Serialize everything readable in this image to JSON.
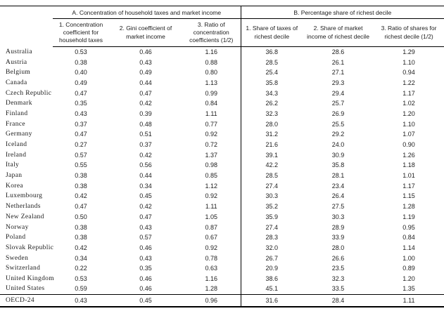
{
  "page": {
    "background": "#ffffff",
    "text_color": "#1c1c1c",
    "border_color": "#000000",
    "flag_color": "#107c10"
  },
  "table": {
    "panel_a_title": "A. Concentration of household taxes and market income",
    "panel_b_title": "B. Percentage share of richest decile",
    "column_headers": {
      "a1": "1. Concentration coefficient for household taxes",
      "a2": "2. Gini coefficient of market income",
      "a3": "3. Ratio of concentration coefficients (1/2)",
      "b1": "1. Share of taxes of richest decile",
      "b2": "2. Share of market income of richest decile",
      "b3": "3. Ratio of shares for richest decile (1/2)"
    },
    "rows": [
      {
        "country": "Australia",
        "values": [
          "0.53",
          "0.46",
          "1.16",
          "36.8",
          "28.6",
          "1.29"
        ]
      },
      {
        "country": "Austria",
        "values": [
          "0.38",
          "0.43",
          "0.88",
          "28.5",
          "26.1",
          "1.10"
        ]
      },
      {
        "country": "Belgium",
        "values": [
          "0.40",
          "0.49",
          "0.80",
          "25.4",
          "27.1",
          "0.94"
        ]
      },
      {
        "country": "Canada",
        "values": [
          "0.49",
          "0.44",
          "1.13",
          "35.8",
          "29.3",
          "1.22"
        ]
      },
      {
        "country": "Czech Republic",
        "values": [
          "0.47",
          "0.47",
          "0.99",
          "34.3",
          "29.4",
          "1.17"
        ]
      },
      {
        "country": "Denmark",
        "values": [
          "0.35",
          "0.42",
          "0.84",
          "26.2",
          "25.7",
          "1.02"
        ]
      },
      {
        "country": "Finland",
        "values": [
          "0.43",
          "0.39",
          "1.11",
          "32.3",
          "26.9",
          "1.20"
        ]
      },
      {
        "country": "France",
        "values": [
          "0.37",
          "0.48",
          "0.77",
          "28.0",
          "25.5",
          "1.10"
        ]
      },
      {
        "country": "Germany",
        "values": [
          "0.47",
          "0.51",
          "0.92",
          "31.2",
          "29.2",
          "1.07"
        ]
      },
      {
        "country": "Iceland",
        "values": [
          "0.27",
          "0.37",
          "0.72",
          "21.6",
          "24.0",
          "0.90"
        ]
      },
      {
        "country": "Ireland",
        "values": [
          "0.57",
          "0.42",
          "1.37",
          "39.1",
          "30.9",
          "1.26"
        ]
      },
      {
        "country": "Italy",
        "values": [
          "0.55",
          "0.56",
          "0.98",
          "42.2",
          "35.8",
          "1.18"
        ]
      },
      {
        "country": "Japan",
        "values": [
          "0.38",
          "0.44",
          "0.85",
          "28.5",
          "28.1",
          "1.01"
        ]
      },
      {
        "country": "Korea",
        "values": [
          "0.38",
          "0.34",
          "1.12",
          "27.4",
          "23.4",
          "1.17"
        ]
      },
      {
        "country": "Luxembourg",
        "values": [
          "0.42",
          "0.45",
          "0.92",
          "30.3",
          "26.4",
          "1.15"
        ]
      },
      {
        "country": "Netherlands",
        "values": [
          "0.47",
          "0.42",
          "1.11",
          "35.2",
          "27.5",
          "1.28"
        ]
      },
      {
        "country": "New Zealand",
        "values": [
          "0.50",
          "0.47",
          "1.05",
          "35.9",
          "30.3",
          "1.19"
        ]
      },
      {
        "country": "Norway",
        "values": [
          "0.38",
          "0.43",
          "0.87",
          "27.4",
          "28.9",
          "0.95"
        ]
      },
      {
        "country": "Poland",
        "values": [
          "0.38",
          "0.57",
          "0.67",
          "28.3",
          "33.9",
          "0.84"
        ]
      },
      {
        "country": "Slovak Republic",
        "values": [
          "0.42",
          "0.46",
          "0.92",
          "32.0",
          "28.0",
          "1.14"
        ]
      },
      {
        "country": "Sweden",
        "values": [
          "0.34",
          "0.43",
          "0.78",
          "26.7",
          "26.6",
          "1.00"
        ]
      },
      {
        "country": "Switzerland",
        "values": [
          "0.22",
          "0.35",
          "0.63",
          "20.9",
          "23.5",
          "0.89"
        ]
      },
      {
        "country": "United Kingdom",
        "values": [
          "0.53",
          "0.46",
          "1.16",
          "38.6",
          "32.3",
          "1.20"
        ]
      },
      {
        "country": "United States",
        "values": [
          "0.59",
          "0.46",
          "1.28",
          "45.1",
          "33.5",
          "1.35"
        ]
      }
    ],
    "footer": {
      "country": "OECD-24",
      "values": [
        "0.43",
        "0.45",
        "0.96",
        "31.6",
        "28.4",
        "1.11"
      ]
    },
    "comment_flags": [
      {
        "row_index": 19,
        "value_index": 3
      },
      {
        "row_index": 19,
        "value_index": 4
      }
    ]
  }
}
